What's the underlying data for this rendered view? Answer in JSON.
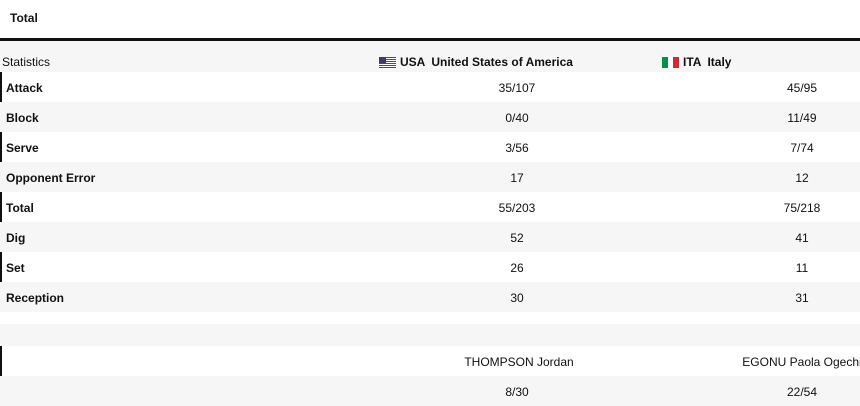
{
  "tab": {
    "label": "Total"
  },
  "header": {
    "stats_label": "Statistics",
    "team1": {
      "code": "USA",
      "name": "United States of America",
      "flag_icon": "usa-flag-icon"
    },
    "team2": {
      "code": "ITA",
      "name": "Italy",
      "flag_icon": "italy-flag-icon"
    }
  },
  "rows": [
    {
      "label": "Attack",
      "usa": "35/107",
      "ita": "45/95"
    },
    {
      "label": "Block",
      "usa": "0/40",
      "ita": "11/49"
    },
    {
      "label": "Serve",
      "usa": "3/56",
      "ita": "7/74"
    },
    {
      "label": "Opponent Error",
      "usa": "17",
      "ita": "12"
    },
    {
      "label": "Total",
      "usa": "55/203",
      "ita": "75/218"
    },
    {
      "label": "Dig",
      "usa": "52",
      "ita": "41"
    },
    {
      "label": "Set",
      "usa": "26",
      "ita": "11"
    },
    {
      "label": "Reception",
      "usa": "30",
      "ita": "31"
    }
  ],
  "top_players": {
    "usa_player": "THOMPSON Jordan",
    "ita_player": "EGONU Paola Ogechi",
    "usa_value": "8/30",
    "ita_value": "22/54"
  },
  "colors": {
    "usa_red": "#b22234",
    "usa_blue": "#3c3b6e",
    "ita_green": "#009246",
    "ita_red": "#ce2b37",
    "row_alt": "#f6f6f6"
  }
}
